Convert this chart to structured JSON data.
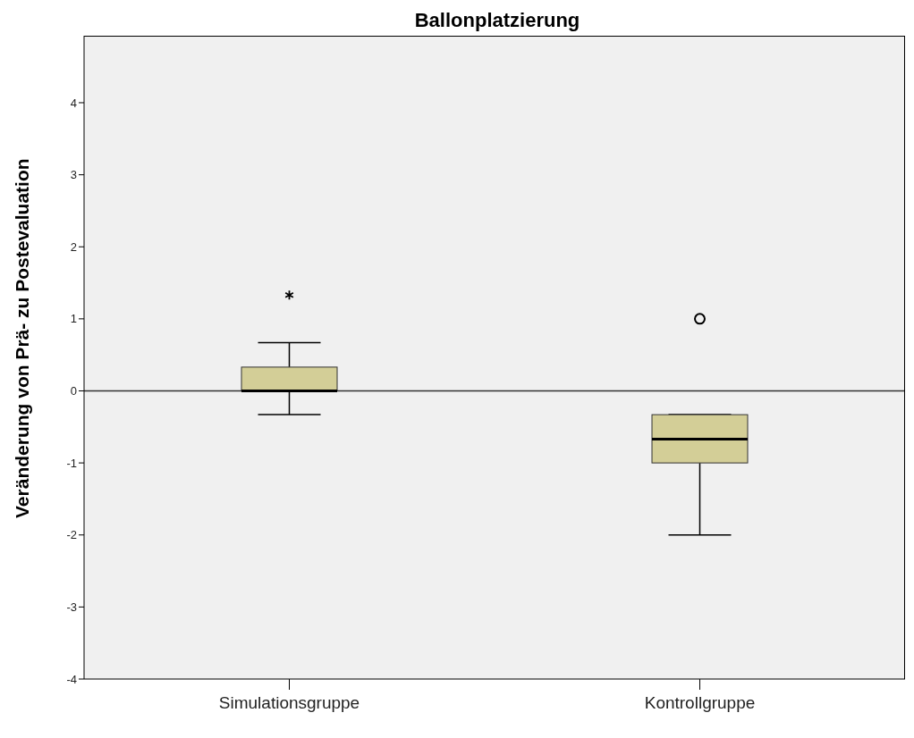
{
  "chart_data": {
    "type": "box",
    "title": "Ballonplatzierung",
    "ylabel": "Veränderung von Prä- zu Postevaluation",
    "categories": [
      "Simulationsgruppe",
      "Kontrollgruppe"
    ],
    "boxes": [
      {
        "low": -0.33,
        "q1": 0,
        "median": 0,
        "q3": 0.33,
        "high": 0.67,
        "outliers": [
          1.33
        ]
      },
      {
        "low": -2,
        "q1": -1,
        "median": -0.67,
        "q3": -0.33,
        "high": -0.33,
        "outliers": [
          1
        ]
      }
    ],
    "color": "#d3ce97",
    "ylim": [
      -4,
      4.93
    ],
    "yticks": [
      -4,
      -3,
      -2,
      -1,
      0,
      1,
      2,
      3,
      4
    ],
    "ref_lines": [
      {
        "axis": "y",
        "value": 0
      }
    ],
    "grid": false
  }
}
